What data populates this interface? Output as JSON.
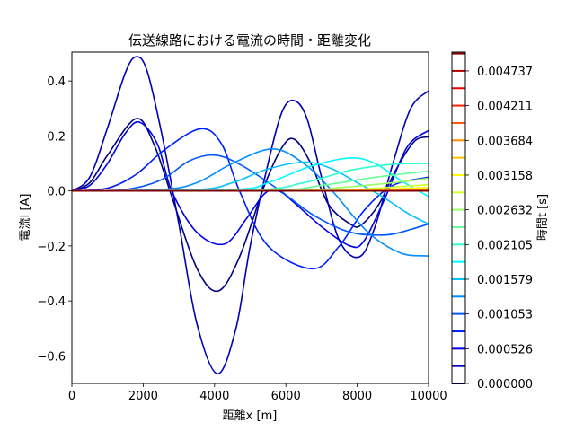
{
  "chart_data": {
    "type": "line",
    "title": "伝送線路における電流の時間・距離変化",
    "xlabel": "距離x [m]",
    "ylabel": "電流I [A]",
    "xlim": [
      0,
      10000
    ],
    "ylim": [
      -0.7,
      0.505
    ],
    "grid": false,
    "xticks": [
      0,
      2000,
      4000,
      6000,
      8000,
      10000
    ],
    "xtick_labels": [
      "0",
      "2000",
      "4000",
      "6000",
      "8000",
      "10000"
    ],
    "yticks": [
      0.4,
      0.2,
      0.0,
      -0.2,
      -0.4,
      -0.6
    ],
    "ytick_labels": [
      "0.4",
      "0.2",
      "0.0",
      "−0.2",
      "−0.4",
      "−0.6"
    ],
    "colorbar": {
      "label": "時間t [s]",
      "colormap": "jet",
      "range": [
        0,
        0.005
      ],
      "levels": 20,
      "ticks": [
        0.0,
        0.000526,
        0.001053,
        0.001579,
        0.002105,
        0.002632,
        0.003158,
        0.003684,
        0.004211,
        0.004737
      ],
      "tick_labels": [
        "0.000000",
        "0.000526",
        "0.001053",
        "0.001579",
        "0.002105",
        "0.002632",
        "0.003158",
        "0.003684",
        "0.004211",
        "0.004737"
      ]
    },
    "series": [
      {
        "t": 0.0,
        "color": "#000080",
        "points": [
          [
            0,
            0
          ],
          [
            500,
            0.03
          ],
          [
            1000,
            0.13
          ],
          [
            1800,
            0.263
          ],
          [
            2300,
            0.17
          ],
          [
            2800,
            -0.02
          ],
          [
            3500,
            -0.28
          ],
          [
            4100,
            -0.364
          ],
          [
            4700,
            -0.24
          ],
          [
            5400,
            0.02
          ],
          [
            5900,
            0.16
          ],
          [
            6250,
            0.187
          ],
          [
            6700,
            0.1
          ],
          [
            7200,
            -0.05
          ],
          [
            7800,
            -0.12
          ],
          [
            8100,
            -0.125
          ],
          [
            8600,
            -0.05
          ],
          [
            9100,
            0.08
          ],
          [
            9600,
            0.18
          ],
          [
            10000,
            0.197
          ]
        ]
      },
      {
        "t": 0.000263,
        "color": "#0000b5",
        "points": [
          [
            0,
            0
          ],
          [
            500,
            0.05
          ],
          [
            1000,
            0.23
          ],
          [
            1500,
            0.43
          ],
          [
            1800,
            0.488
          ],
          [
            2100,
            0.44
          ],
          [
            2500,
            0.22
          ],
          [
            3000,
            -0.12
          ],
          [
            3500,
            -0.48
          ],
          [
            4080,
            -0.665
          ],
          [
            4600,
            -0.5
          ],
          [
            5000,
            -0.2
          ],
          [
            5500,
            0.1
          ],
          [
            5900,
            0.29
          ],
          [
            6250,
            0.328
          ],
          [
            6600,
            0.26
          ],
          [
            7000,
            0.05
          ],
          [
            7500,
            -0.18
          ],
          [
            8060,
            -0.24
          ],
          [
            8500,
            -0.13
          ],
          [
            9000,
            0.1
          ],
          [
            9500,
            0.3
          ],
          [
            10000,
            0.364
          ]
        ]
      },
      {
        "t": 0.000526,
        "color": "#0000eb",
        "points": [
          [
            0,
            0
          ],
          [
            500,
            0.02
          ],
          [
            1000,
            0.1
          ],
          [
            1500,
            0.21
          ],
          [
            1900,
            0.25
          ],
          [
            2400,
            0.17
          ],
          [
            2800,
            0
          ],
          [
            3500,
            -0.15
          ],
          [
            4280,
            -0.193
          ],
          [
            4900,
            -0.1
          ],
          [
            5400,
            -0.01
          ],
          [
            5800,
            0.0
          ],
          [
            6300,
            -0.05
          ],
          [
            7000,
            -0.13
          ],
          [
            7800,
            -0.2
          ],
          [
            8200,
            -0.18
          ],
          [
            8800,
            -0.02
          ],
          [
            9400,
            0.16
          ],
          [
            10000,
            0.22
          ]
        ]
      },
      {
        "t": 0.000789,
        "color": "#0021ff",
        "points": [
          [
            0,
            0
          ],
          [
            1000,
            0.01
          ],
          [
            1800,
            0.06
          ],
          [
            2600,
            0.15
          ],
          [
            3610,
            0.226
          ],
          [
            4200,
            0.17
          ],
          [
            4700,
            0.0
          ],
          [
            5500,
            -0.2
          ],
          [
            6760,
            -0.283
          ],
          [
            7500,
            -0.2
          ],
          [
            8200,
            -0.07
          ],
          [
            9000,
            0.02
          ],
          [
            10000,
            0.05
          ]
        ]
      },
      {
        "t": 0.001053,
        "color": "#0057ff",
        "points": [
          [
            0,
            0
          ],
          [
            1500,
            0.005
          ],
          [
            2500,
            0.04
          ],
          [
            3300,
            0.11
          ],
          [
            4030,
            0.13
          ],
          [
            4800,
            0.09
          ],
          [
            5850,
            0
          ],
          [
            6800,
            -0.09
          ],
          [
            7800,
            -0.15
          ],
          [
            8800,
            -0.16
          ],
          [
            9500,
            -0.14
          ],
          [
            10000,
            -0.12
          ]
        ]
      },
      {
        "t": 0.001316,
        "color": "#008dff",
        "points": [
          [
            0,
            0
          ],
          [
            2500,
            0.005
          ],
          [
            3500,
            0.03
          ],
          [
            4500,
            0.1
          ],
          [
            5625,
            0.153
          ],
          [
            6500,
            0.1
          ],
          [
            7300,
            0
          ],
          [
            8300,
            -0.15
          ],
          [
            9200,
            -0.225
          ],
          [
            9900,
            -0.236
          ],
          [
            10000,
            -0.235
          ]
        ]
      },
      {
        "t": 0.001579,
        "color": "#00c2ff",
        "points": [
          [
            0,
            0
          ],
          [
            3500,
            0.005
          ],
          [
            4500,
            0.03
          ],
          [
            5500,
            0.08
          ],
          [
            6550,
            0.105
          ],
          [
            7300,
            0.08
          ],
          [
            8000,
            0.03
          ],
          [
            8700,
            -0.02
          ],
          [
            9400,
            -0.08
          ],
          [
            10000,
            -0.12
          ]
        ]
      },
      {
        "t": 0.001842,
        "color": "#00f8ff",
        "points": [
          [
            0,
            0
          ],
          [
            4500,
            0.005
          ],
          [
            5500,
            0.03
          ],
          [
            6700,
            0.09
          ],
          [
            7810,
            0.12
          ],
          [
            8500,
            0.1
          ],
          [
            9200,
            0.04
          ],
          [
            10000,
            -0.02
          ]
        ]
      },
      {
        "t": 0.002105,
        "color": "#2fffd0",
        "points": [
          [
            0,
            0
          ],
          [
            5000,
            0.003
          ],
          [
            6500,
            0.03
          ],
          [
            7800,
            0.075
          ],
          [
            9000,
            0.097
          ],
          [
            10000,
            0.1
          ]
        ]
      },
      {
        "t": 0.002368,
        "color": "#65ff9a",
        "points": [
          [
            0,
            0
          ],
          [
            5500,
            0.002
          ],
          [
            7000,
            0.02
          ],
          [
            8500,
            0.05
          ],
          [
            10000,
            0.072
          ]
        ]
      },
      {
        "t": 0.002632,
        "color": "#9aff65",
        "points": [
          [
            0,
            0
          ],
          [
            6000,
            0.001
          ],
          [
            7500,
            0.012
          ],
          [
            9000,
            0.03
          ],
          [
            10000,
            0.046
          ]
        ]
      },
      {
        "t": 0.002895,
        "color": "#d0ff2f",
        "points": [
          [
            0,
            0
          ],
          [
            6500,
            0.001
          ],
          [
            8000,
            0.006
          ],
          [
            9000,
            0.014
          ],
          [
            10000,
            0.023
          ]
        ]
      },
      {
        "t": 0.003158,
        "color": "#fff800",
        "points": [
          [
            0,
            0
          ],
          [
            7000,
            0.001
          ],
          [
            8500,
            0.005
          ],
          [
            10000,
            0.013
          ]
        ]
      },
      {
        "t": 0.003421,
        "color": "#ffc200",
        "points": [
          [
            0,
            0
          ],
          [
            7500,
            0.001
          ],
          [
            9000,
            0.003
          ],
          [
            10000,
            0.007
          ]
        ]
      },
      {
        "t": 0.003684,
        "color": "#ff8d00",
        "points": [
          [
            0,
            0
          ],
          [
            8000,
            0.001
          ],
          [
            10000,
            0.004
          ]
        ]
      },
      {
        "t": 0.003947,
        "color": "#ff5700",
        "points": [
          [
            0,
            0
          ],
          [
            8500,
            0.0005
          ],
          [
            10000,
            0.002
          ]
        ]
      },
      {
        "t": 0.004211,
        "color": "#ff2100",
        "points": [
          [
            0,
            0
          ],
          [
            9000,
            0.0003
          ],
          [
            10000,
            0.001
          ]
        ]
      },
      {
        "t": 0.004474,
        "color": "#eb0000",
        "points": [
          [
            0,
            0
          ],
          [
            10000,
            0.0005
          ]
        ]
      },
      {
        "t": 0.004737,
        "color": "#b50000",
        "points": [
          [
            0,
            0
          ],
          [
            10000,
            0.0
          ]
        ]
      },
      {
        "t": 0.005,
        "color": "#800000",
        "points": [
          [
            0,
            0
          ],
          [
            10000,
            0.0
          ]
        ]
      }
    ]
  }
}
